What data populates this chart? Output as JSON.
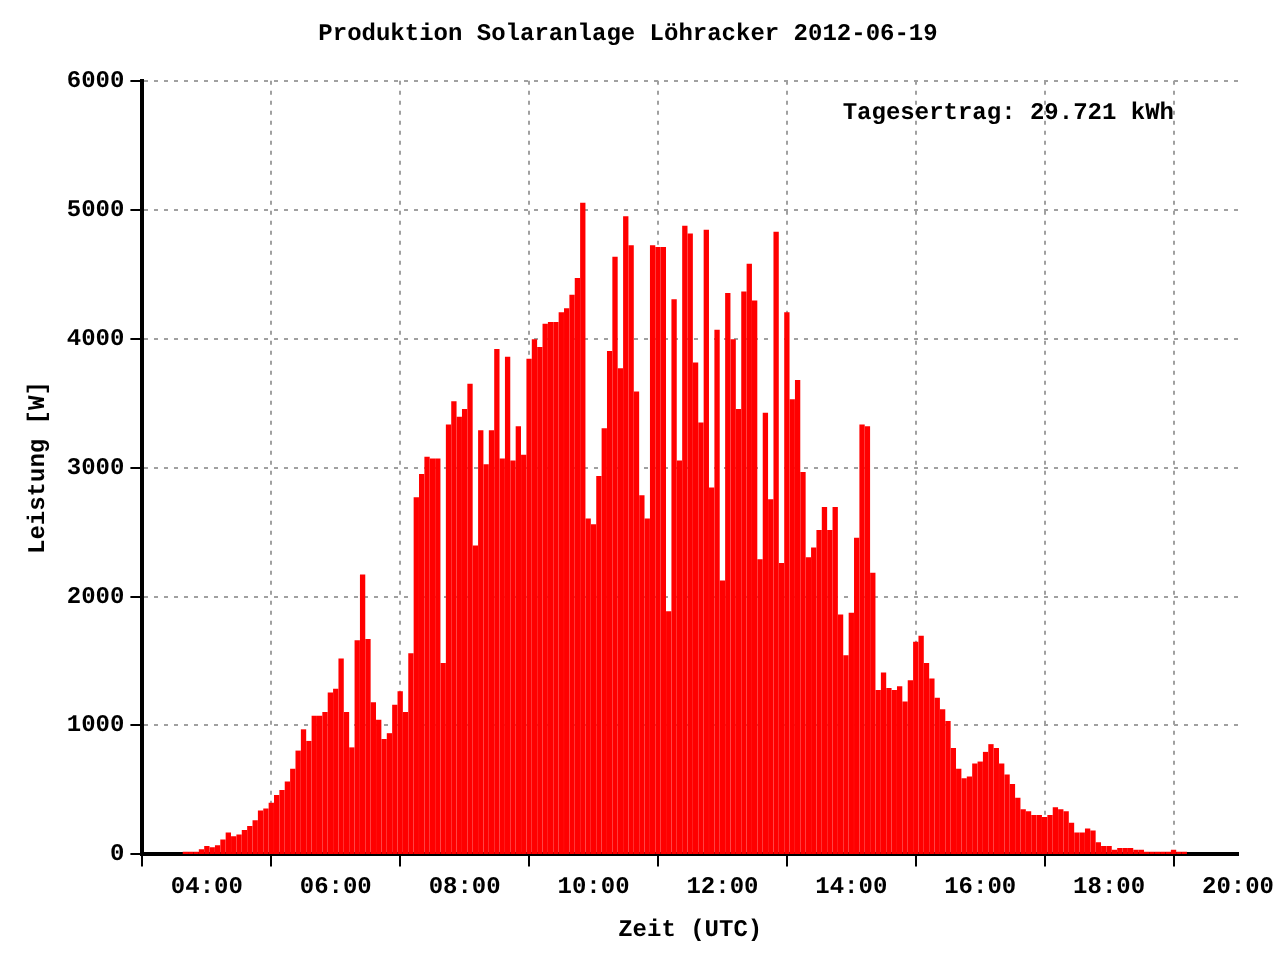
{
  "chart_data": {
    "type": "bar",
    "title": "Produktion Solaranlage Löhracker 2012-06-19",
    "xlabel": "Zeit (UTC)",
    "ylabel": "Leistung [W]",
    "annotations": [
      "Tagesertrag: 29.721 kWh"
    ],
    "x": [
      3.6667,
      3.75,
      3.8333,
      3.9167,
      4,
      4.0833,
      4.1667,
      4.25,
      4.3333,
      4.4167,
      4.5,
      4.5833,
      4.6667,
      4.75,
      4.8333,
      4.9167,
      5,
      5.0833,
      5.1667,
      5.25,
      5.3333,
      5.4167,
      5.5,
      5.5833,
      5.6667,
      5.75,
      5.8333,
      5.9167,
      6,
      6.0833,
      6.1667,
      6.25,
      6.3333,
      6.4167,
      6.5,
      6.5833,
      6.6667,
      6.75,
      6.8333,
      6.9167,
      7,
      7.0833,
      7.1667,
      7.25,
      7.3333,
      7.4167,
      7.5,
      7.5833,
      7.6667,
      7.75,
      7.8333,
      7.9167,
      8,
      8.0833,
      8.1667,
      8.25,
      8.3333,
      8.4167,
      8.5,
      8.5833,
      8.6667,
      8.75,
      8.8333,
      8.9167,
      9,
      9.0833,
      9.1667,
      9.25,
      9.3333,
      9.4167,
      9.5,
      9.5833,
      9.6667,
      9.75,
      9.8333,
      9.9167,
      10,
      10.0833,
      10.1667,
      10.25,
      10.3333,
      10.4167,
      10.5,
      10.5833,
      10.6667,
      10.75,
      10.8333,
      10.9167,
      11,
      11.0833,
      11.1667,
      11.25,
      11.3333,
      11.4167,
      11.5,
      11.5833,
      11.6667,
      11.75,
      11.8333,
      11.9167,
      12,
      12.0833,
      12.1667,
      12.25,
      12.3333,
      12.4167,
      12.5,
      12.5833,
      12.6667,
      12.75,
      12.8333,
      12.9167,
      13,
      13.0833,
      13.1667,
      13.25,
      13.3333,
      13.4167,
      13.5,
      13.5833,
      13.6667,
      13.75,
      13.8333,
      13.9167,
      14,
      14.0833,
      14.1667,
      14.25,
      14.3333,
      14.4167,
      14.5,
      14.5833,
      14.6667,
      14.75,
      14.8333,
      14.9167,
      15,
      15.0833,
      15.1667,
      15.25,
      15.3333,
      15.4167,
      15.5,
      15.5833,
      15.6667,
      15.75,
      15.8333,
      15.9167,
      16,
      16.0833,
      16.1667,
      16.25,
      16.3333,
      16.4167,
      16.5,
      16.5833,
      16.6667,
      16.75,
      16.8333,
      16.9167,
      17,
      17.0833,
      17.1667,
      17.25,
      17.3333,
      17.4167,
      17.5,
      17.5833,
      17.6667,
      17.75,
      17.8333,
      17.9167,
      18,
      18.0833,
      18.1667,
      18.25,
      18.3333,
      18.4167,
      18.5,
      18.5833,
      18.6667,
      18.75,
      18.8333,
      18.9167,
      19,
      19.0833,
      19.1667
    ],
    "series": [
      {
        "color": "#ff0000",
        "values": [
          15,
          15,
          15,
          35,
          60,
          50,
          65,
          110,
          165,
          135,
          150,
          185,
          215,
          260,
          335,
          350,
          395,
          455,
          495,
          560,
          660,
          800,
          965,
          875,
          1070,
          1070,
          1100,
          1250,
          1280,
          1515,
          1100,
          825,
          1655,
          2165,
          1665,
          1175,
          1040,
          890,
          935,
          1155,
          1260,
          1100,
          1555,
          2765,
          2945,
          3080,
          3065,
          3065,
          1480,
          3330,
          3510,
          3390,
          3450,
          3645,
          2390,
          3285,
          3020,
          3285,
          3915,
          3065,
          3855,
          3050,
          3315,
          3095,
          3840,
          3990,
          3930,
          4110,
          4125,
          4125,
          4200,
          4230,
          4335,
          4465,
          5050,
          2600,
          2555,
          2930,
          3300,
          3900,
          4630,
          3765,
          4945,
          4720,
          3585,
          2780,
          2600,
          4720,
          4705,
          4705,
          1880,
          4300,
          3050,
          4870,
          4810,
          3810,
          3345,
          4840,
          2840,
          4065,
          2120,
          4350,
          3990,
          3450,
          4360,
          4575,
          4290,
          2285,
          3420,
          2750,
          4825,
          2255,
          4200,
          3525,
          3675,
          2960,
          2300,
          2375,
          2510,
          2690,
          2510,
          2690,
          1855,
          1540,
          1870,
          2450,
          3330,
          3315,
          2180,
          1270,
          1405,
          1285,
          1270,
          1300,
          1180,
          1345,
          1645,
          1690,
          1480,
          1360,
          1210,
          1120,
          1030,
          820,
          660,
          585,
          600,
          700,
          715,
          790,
          850,
          820,
          700,
          615,
          540,
          435,
          345,
          330,
          300,
          300,
          285,
          300,
          360,
          345,
          330,
          240,
          165,
          165,
          195,
          180,
          90,
          60,
          60,
          30,
          45,
          45,
          45,
          30,
          30,
          15,
          15,
          15,
          15,
          15,
          30,
          15,
          15
        ]
      }
    ],
    "xlim": [
      3,
      20
    ],
    "xticks": [
      {
        "value": 4,
        "label": "04:00"
      },
      {
        "value": 6,
        "label": "06:00"
      },
      {
        "value": 8,
        "label": "08:00"
      },
      {
        "value": 10,
        "label": "10:00"
      },
      {
        "value": 12,
        "label": "12:00"
      },
      {
        "value": 14,
        "label": "14:00"
      },
      {
        "value": 16,
        "label": "16:00"
      },
      {
        "value": 18,
        "label": "18:00"
      },
      {
        "value": 20,
        "label": "20:00"
      }
    ],
    "ylim": [
      0,
      6000
    ],
    "yticks": [
      0,
      1000,
      2000,
      3000,
      4000,
      5000,
      6000
    ],
    "grid": true,
    "legend": false
  }
}
